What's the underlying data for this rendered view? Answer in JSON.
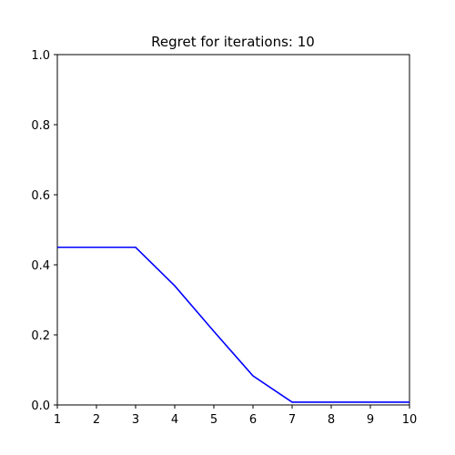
{
  "chart_data": {
    "type": "line",
    "title": "Regret for iterations: 10",
    "xlabel": "",
    "ylabel": "",
    "xlim": [
      1,
      10
    ],
    "ylim": [
      0,
      1
    ],
    "x_ticks": [
      "1",
      "2",
      "3",
      "4",
      "5",
      "6",
      "7",
      "8",
      "9",
      "10"
    ],
    "y_ticks": [
      "0.0",
      "0.2",
      "0.4",
      "0.6",
      "0.8",
      "1.0"
    ],
    "grid": false,
    "series": [
      {
        "color": "#0000ff",
        "x": [
          1,
          2,
          3,
          4,
          5,
          6,
          7,
          8,
          9,
          10
        ],
        "y": [
          0.45,
          0.45,
          0.45,
          0.34,
          0.21,
          0.083,
          0.008,
          0.008,
          0.008,
          0.008
        ]
      }
    ]
  }
}
